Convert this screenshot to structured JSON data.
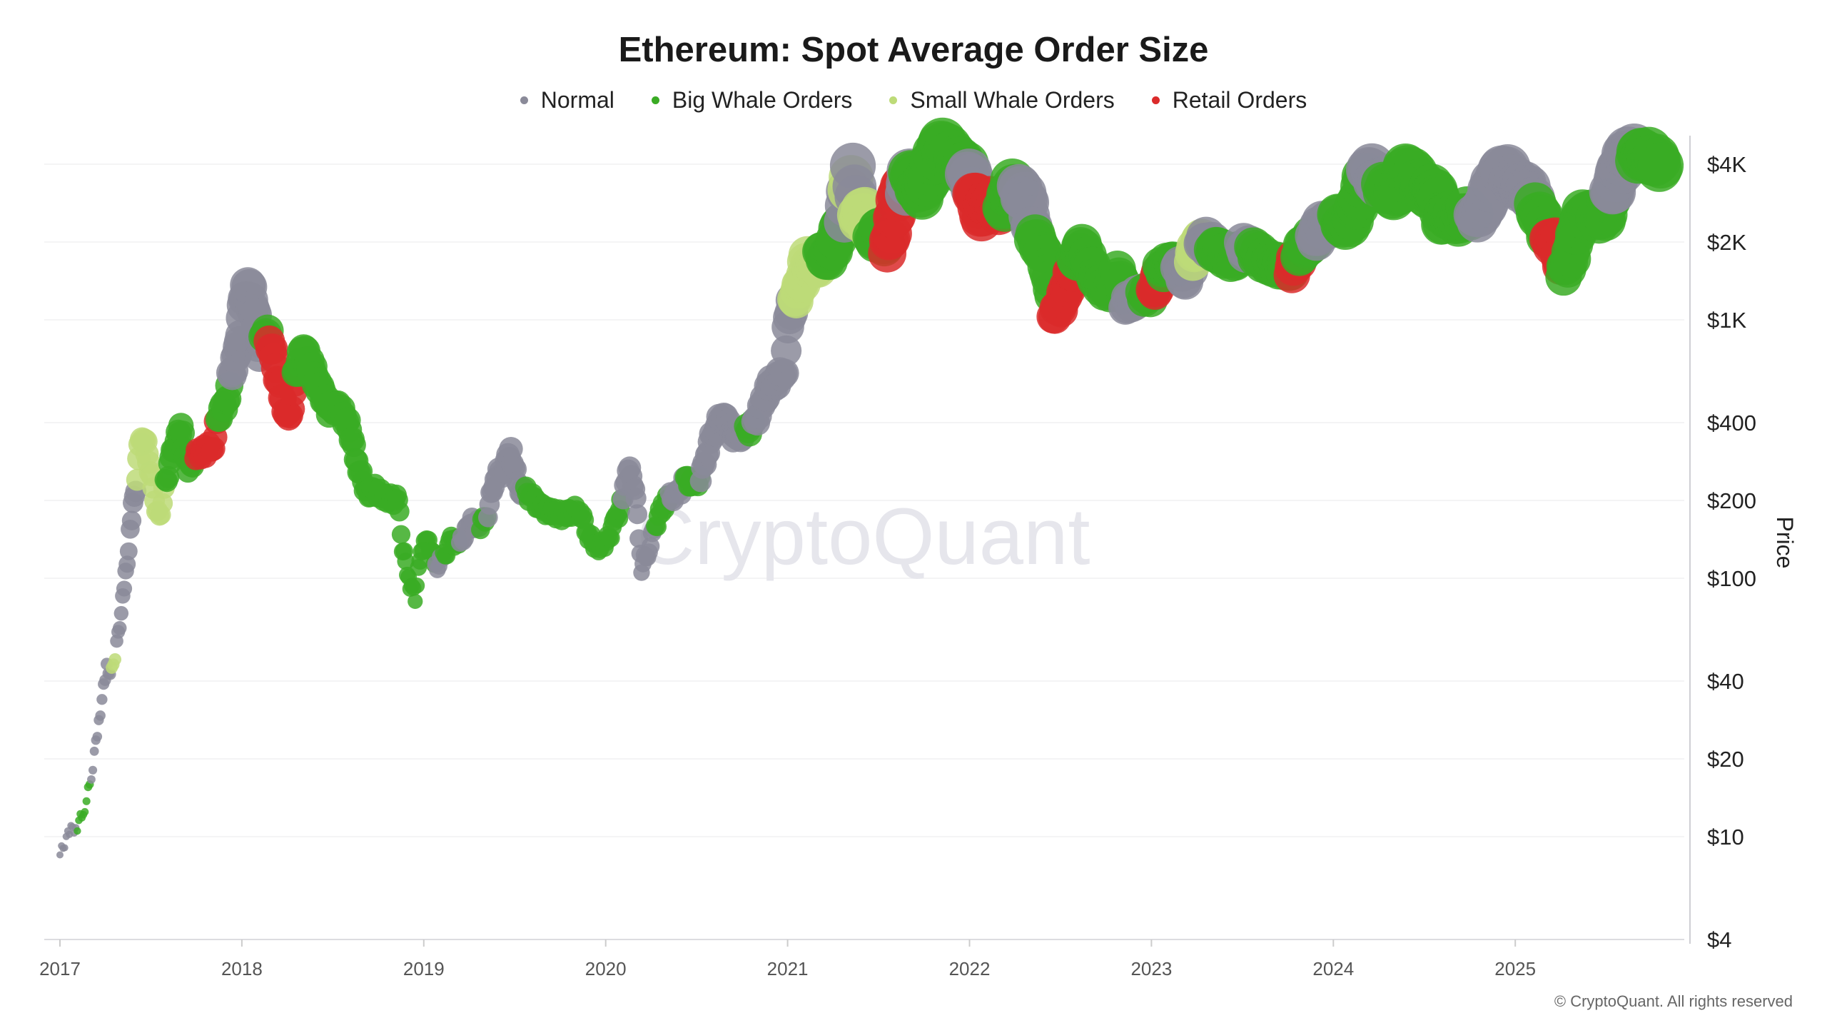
{
  "chart_data": {
    "type": "scatter",
    "title": "Ethereum: Spot Average Order Size",
    "ylabel": "Price",
    "xlabel": "",
    "y_scale": "log",
    "ylim": [
      4,
      4400
    ],
    "xlim": [
      "2016-12-20",
      "2025-11-20"
    ],
    "grid": "horizontal",
    "legend_placement": "top-center",
    "y_ticks": [
      {
        "value": 4000,
        "label": "$4K"
      },
      {
        "value": 2000,
        "label": "$2K"
      },
      {
        "value": 1000,
        "label": "$1K"
      },
      {
        "value": 400,
        "label": "$400"
      },
      {
        "value": 200,
        "label": "$200"
      },
      {
        "value": 100,
        "label": "$100"
      },
      {
        "value": 40,
        "label": "$40"
      },
      {
        "value": 20,
        "label": "$20"
      },
      {
        "value": 10,
        "label": "$10"
      },
      {
        "value": 4,
        "label": "$4"
      }
    ],
    "x_ticks": [
      "2017",
      "2018",
      "2019",
      "2020",
      "2021",
      "2022",
      "2023",
      "2024",
      "2025"
    ],
    "categories": [
      {
        "key": "normal",
        "name": "Normal",
        "color": "#8a8a99"
      },
      {
        "key": "big",
        "name": "Big Whale Orders",
        "color": "#3aab24"
      },
      {
        "key": "small",
        "name": "Small Whale Orders",
        "color": "#bddb78"
      },
      {
        "key": "retail",
        "name": "Retail Orders",
        "color": "#db2a2a"
      }
    ],
    "points": [
      [
        "2017-01-01",
        8.5,
        "normal"
      ],
      [
        "2017-01-20",
        10.5,
        "normal"
      ],
      [
        "2017-02-05",
        11,
        "big"
      ],
      [
        "2017-02-20",
        13,
        "big"
      ],
      [
        "2017-03-05",
        17,
        "normal"
      ],
      [
        "2017-03-20",
        28,
        "normal"
      ],
      [
        "2017-04-05",
        45,
        "normal"
      ],
      [
        "2017-04-15",
        43,
        "small"
      ],
      [
        "2017-04-25",
        55,
        "normal"
      ],
      [
        "2017-05-10",
        90,
        "normal"
      ],
      [
        "2017-05-25",
        170,
        "normal"
      ],
      [
        "2017-06-05",
        250,
        "small"
      ],
      [
        "2017-06-15",
        360,
        "small"
      ],
      [
        "2017-06-28",
        290,
        "small"
      ],
      [
        "2017-07-10",
        200,
        "small"
      ],
      [
        "2017-07-20",
        170,
        "small"
      ],
      [
        "2017-08-01",
        230,
        "big"
      ],
      [
        "2017-08-15",
        300,
        "big"
      ],
      [
        "2017-09-01",
        380,
        "big"
      ],
      [
        "2017-09-15",
        260,
        "big"
      ],
      [
        "2017-10-01",
        300,
        "retail"
      ],
      [
        "2017-10-20",
        310,
        "retail"
      ],
      [
        "2017-11-05",
        330,
        "retail"
      ],
      [
        "2017-11-15",
        420,
        "big"
      ],
      [
        "2017-12-01",
        480,
        "big"
      ],
      [
        "2017-12-10",
        600,
        "normal"
      ],
      [
        "2017-12-25",
        750,
        "normal"
      ],
      [
        "2018-01-05",
        1100,
        "normal"
      ],
      [
        "2018-01-13",
        1350,
        "normal"
      ],
      [
        "2018-01-25",
        1100,
        "normal"
      ],
      [
        "2018-02-05",
        750,
        "normal"
      ],
      [
        "2018-02-15",
        900,
        "big"
      ],
      [
        "2018-02-25",
        850,
        "retail"
      ],
      [
        "2018-03-10",
        650,
        "retail"
      ],
      [
        "2018-03-25",
        480,
        "retail"
      ],
      [
        "2018-04-05",
        400,
        "retail"
      ],
      [
        "2018-04-20",
        600,
        "big"
      ],
      [
        "2018-05-05",
        750,
        "big"
      ],
      [
        "2018-05-20",
        650,
        "big"
      ],
      [
        "2018-06-05",
        550,
        "big"
      ],
      [
        "2018-06-25",
        450,
        "big"
      ],
      [
        "2018-07-15",
        460,
        "big"
      ],
      [
        "2018-08-05",
        380,
        "big"
      ],
      [
        "2018-08-20",
        280,
        "big"
      ],
      [
        "2018-09-10",
        210,
        "big"
      ],
      [
        "2018-09-25",
        220,
        "big"
      ],
      [
        "2018-10-15",
        205,
        "big"
      ],
      [
        "2018-11-10",
        200,
        "big"
      ],
      [
        "2018-11-20",
        130,
        "big"
      ],
      [
        "2018-12-05",
        95,
        "big"
      ],
      [
        "2018-12-15",
        85,
        "big"
      ],
      [
        "2018-12-28",
        130,
        "big"
      ],
      [
        "2019-01-10",
        140,
        "big"
      ],
      [
        "2019-01-25",
        110,
        "normal"
      ],
      [
        "2019-02-10",
        120,
        "big"
      ],
      [
        "2019-02-25",
        140,
        "big"
      ],
      [
        "2019-03-15",
        135,
        "normal"
      ],
      [
        "2019-04-05",
        165,
        "normal"
      ],
      [
        "2019-04-25",
        160,
        "big"
      ],
      [
        "2019-05-10",
        180,
        "normal"
      ],
      [
        "2019-05-25",
        250,
        "normal"
      ],
      [
        "2019-06-10",
        260,
        "normal"
      ],
      [
        "2019-06-25",
        310,
        "normal"
      ],
      [
        "2019-07-10",
        220,
        "normal"
      ],
      [
        "2019-07-25",
        215,
        "big"
      ],
      [
        "2019-08-10",
        200,
        "big"
      ],
      [
        "2019-08-25",
        185,
        "big"
      ],
      [
        "2019-09-15",
        180,
        "big"
      ],
      [
        "2019-10-05",
        175,
        "big"
      ],
      [
        "2019-10-25",
        180,
        "big"
      ],
      [
        "2019-11-10",
        185,
        "big"
      ],
      [
        "2019-11-25",
        150,
        "big"
      ],
      [
        "2019-12-15",
        130,
        "big"
      ],
      [
        "2020-01-05",
        140,
        "big"
      ],
      [
        "2020-01-20",
        165,
        "big"
      ],
      [
        "2020-02-05",
        200,
        "normal"
      ],
      [
        "2020-02-15",
        265,
        "normal"
      ],
      [
        "2020-02-28",
        230,
        "normal"
      ],
      [
        "2020-03-13",
        110,
        "normal"
      ],
      [
        "2020-03-28",
        130,
        "normal"
      ],
      [
        "2020-04-10",
        160,
        "big"
      ],
      [
        "2020-04-25",
        190,
        "big"
      ],
      [
        "2020-05-10",
        205,
        "normal"
      ],
      [
        "2020-05-25",
        210,
        "normal"
      ],
      [
        "2020-06-10",
        240,
        "big"
      ],
      [
        "2020-06-25",
        230,
        "big"
      ],
      [
        "2020-07-10",
        245,
        "normal"
      ],
      [
        "2020-07-25",
        320,
        "normal"
      ],
      [
        "2020-08-10",
        390,
        "normal"
      ],
      [
        "2020-08-28",
        430,
        "normal"
      ],
      [
        "2020-09-10",
        360,
        "normal"
      ],
      [
        "2020-09-25",
        350,
        "normal"
      ],
      [
        "2020-10-10",
        370,
        "big"
      ],
      [
        "2020-10-25",
        390,
        "normal"
      ],
      [
        "2020-11-10",
        460,
        "normal"
      ],
      [
        "2020-11-25",
        560,
        "normal"
      ],
      [
        "2020-12-10",
        580,
        "normal"
      ],
      [
        "2020-12-25",
        650,
        "normal"
      ],
      [
        "2021-01-05",
        1050,
        "normal"
      ],
      [
        "2021-01-15",
        1200,
        "small"
      ],
      [
        "2021-01-28",
        1350,
        "small"
      ],
      [
        "2021-02-10",
        1700,
        "small"
      ],
      [
        "2021-02-25",
        1500,
        "small"
      ],
      [
        "2021-03-10",
        1800,
        "big"
      ],
      [
        "2021-03-25",
        1700,
        "big"
      ],
      [
        "2021-04-10",
        2100,
        "big"
      ],
      [
        "2021-04-25",
        2500,
        "normal"
      ],
      [
        "2021-05-05",
        3300,
        "small"
      ],
      [
        "2021-05-12",
        4000,
        "normal"
      ],
      [
        "2021-05-22",
        2500,
        "small"
      ],
      [
        "2021-06-05",
        2600,
        "small"
      ],
      [
        "2021-06-20",
        2000,
        "big"
      ],
      [
        "2021-07-05",
        2200,
        "big"
      ],
      [
        "2021-07-20",
        1800,
        "retail"
      ],
      [
        "2021-08-05",
        2600,
        "retail"
      ],
      [
        "2021-08-15",
        3200,
        "retail"
      ],
      [
        "2021-08-28",
        3200,
        "normal"
      ],
      [
        "2021-09-05",
        3800,
        "big"
      ],
      [
        "2021-09-25",
        3000,
        "big"
      ],
      [
        "2021-10-10",
        3500,
        "big"
      ],
      [
        "2021-10-25",
        4200,
        "big"
      ],
      [
        "2021-11-08",
        4700,
        "big"
      ],
      [
        "2021-11-25",
        4300,
        "big"
      ],
      [
        "2021-12-10",
        4000,
        "big"
      ],
      [
        "2021-12-28",
        3800,
        "normal"
      ],
      [
        "2022-01-10",
        3200,
        "retail"
      ],
      [
        "2022-01-25",
        2500,
        "retail"
      ],
      [
        "2022-02-10",
        3000,
        "retail"
      ],
      [
        "2022-02-25",
        2700,
        "retail"
      ],
      [
        "2022-03-10",
        2600,
        "big"
      ],
      [
        "2022-03-28",
        3300,
        "big"
      ],
      [
        "2022-04-10",
        3200,
        "normal"
      ],
      [
        "2022-04-25",
        2900,
        "normal"
      ],
      [
        "2022-05-10",
        2100,
        "big"
      ],
      [
        "2022-05-25",
        1900,
        "big"
      ],
      [
        "2022-06-10",
        1500,
        "big"
      ],
      [
        "2022-06-18",
        1050,
        "retail"
      ],
      [
        "2022-07-01",
        1100,
        "retail"
      ],
      [
        "2022-07-15",
        1300,
        "retail"
      ],
      [
        "2022-08-01",
        1650,
        "big"
      ],
      [
        "2022-08-15",
        1900,
        "big"
      ],
      [
        "2022-09-01",
        1600,
        "big"
      ],
      [
        "2022-09-20",
        1350,
        "big"
      ],
      [
        "2022-10-10",
        1300,
        "big"
      ],
      [
        "2022-10-28",
        1550,
        "big"
      ],
      [
        "2022-11-10",
        1150,
        "normal"
      ],
      [
        "2022-11-25",
        1200,
        "normal"
      ],
      [
        "2022-12-15",
        1250,
        "big"
      ],
      [
        "2023-01-05",
        1250,
        "retail"
      ],
      [
        "2023-01-20",
        1550,
        "big"
      ],
      [
        "2023-02-10",
        1650,
        "big"
      ],
      [
        "2023-02-25",
        1600,
        "normal"
      ],
      [
        "2023-03-10",
        1450,
        "normal"
      ],
      [
        "2023-03-25",
        1750,
        "small"
      ],
      [
        "2023-04-15",
        2050,
        "normal"
      ],
      [
        "2023-05-05",
        1900,
        "big"
      ],
      [
        "2023-05-25",
        1800,
        "big"
      ],
      [
        "2023-06-15",
        1700,
        "big"
      ],
      [
        "2023-07-05",
        1900,
        "normal"
      ],
      [
        "2023-07-25",
        1850,
        "big"
      ],
      [
        "2023-08-15",
        1700,
        "big"
      ],
      [
        "2023-09-05",
        1630,
        "big"
      ],
      [
        "2023-09-25",
        1600,
        "big"
      ],
      [
        "2023-10-10",
        1560,
        "retail"
      ],
      [
        "2023-10-25",
        1800,
        "big"
      ],
      [
        "2023-11-10",
        2000,
        "big"
      ],
      [
        "2023-11-25",
        2050,
        "normal"
      ],
      [
        "2023-12-10",
        2300,
        "normal"
      ],
      [
        "2023-12-28",
        2350,
        "normal"
      ],
      [
        "2024-01-10",
        2500,
        "big"
      ],
      [
        "2024-01-25",
        2250,
        "big"
      ],
      [
        "2024-02-10",
        2500,
        "big"
      ],
      [
        "2024-02-25",
        3100,
        "big"
      ],
      [
        "2024-03-12",
        3950,
        "normal"
      ],
      [
        "2024-03-28",
        3500,
        "normal"
      ],
      [
        "2024-04-10",
        3300,
        "big"
      ],
      [
        "2024-04-25",
        3100,
        "big"
      ],
      [
        "2024-05-10",
        2950,
        "big"
      ],
      [
        "2024-05-25",
        3800,
        "big"
      ],
      [
        "2024-06-10",
        3600,
        "big"
      ],
      [
        "2024-06-25",
        3300,
        "big"
      ],
      [
        "2024-07-10",
        3100,
        "big"
      ],
      [
        "2024-07-25",
        3300,
        "big"
      ],
      [
        "2024-08-05",
        2400,
        "big"
      ],
      [
        "2024-08-20",
        2600,
        "big"
      ],
      [
        "2024-09-05",
        2350,
        "big"
      ],
      [
        "2024-09-25",
        2600,
        "big"
      ],
      [
        "2024-10-10",
        2450,
        "normal"
      ],
      [
        "2024-10-28",
        2600,
        "normal"
      ],
      [
        "2024-11-12",
        3200,
        "normal"
      ],
      [
        "2024-11-28",
        3600,
        "normal"
      ],
      [
        "2024-12-10",
        3900,
        "normal"
      ],
      [
        "2024-12-28",
        3400,
        "normal"
      ],
      [
        "2025-01-10",
        3300,
        "normal"
      ],
      [
        "2025-01-28",
        3200,
        "normal"
      ],
      [
        "2025-02-10",
        2700,
        "big"
      ],
      [
        "2025-02-25",
        2400,
        "big"
      ],
      [
        "2025-03-10",
        2000,
        "retail"
      ],
      [
        "2025-03-25",
        2000,
        "retail"
      ],
      [
        "2025-04-08",
        1500,
        "big"
      ],
      [
        "2025-04-25",
        1800,
        "big"
      ],
      [
        "2025-05-10",
        2500,
        "big"
      ],
      [
        "2025-05-28",
        2600,
        "big"
      ],
      [
        "2025-06-15",
        2500,
        "big"
      ],
      [
        "2025-06-28",
        2400,
        "big"
      ],
      [
        "2025-07-12",
        3000,
        "normal"
      ],
      [
        "2025-07-28",
        3700,
        "normal"
      ],
      [
        "2025-08-12",
        4300,
        "normal"
      ],
      [
        "2025-08-25",
        4500,
        "normal"
      ],
      [
        "2025-09-05",
        4300,
        "big"
      ],
      [
        "2025-09-20",
        4400,
        "big"
      ],
      [
        "2025-10-05",
        4200,
        "big"
      ],
      [
        "2025-10-20",
        3950,
        "big"
      ]
    ]
  },
  "watermark": "CryptoQuant",
  "copyright": "© CryptoQuant. All rights reserved"
}
